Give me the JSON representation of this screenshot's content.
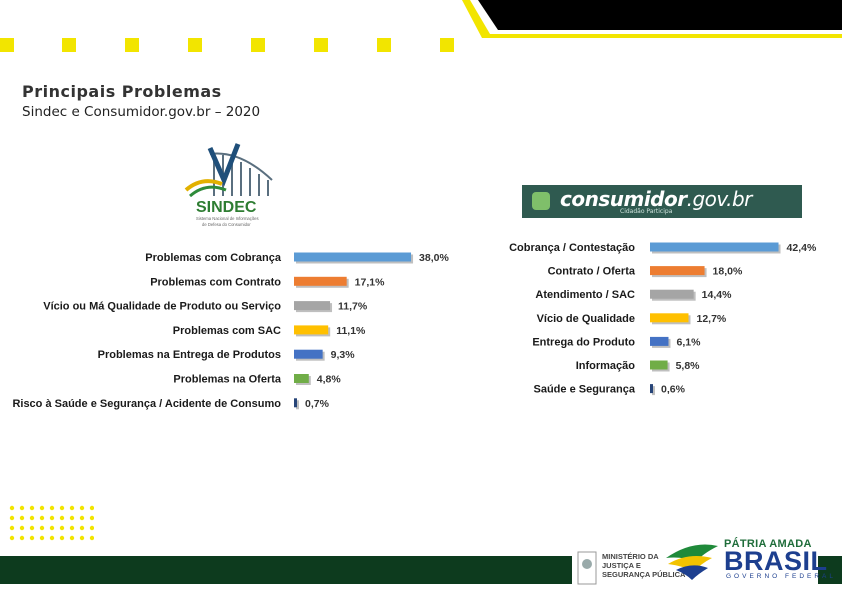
{
  "header": {
    "title": "Principais Problemas",
    "subtitle": "Sindec e Consumidor.gov.br – 2020"
  },
  "logos": {
    "sindec_name": "SINDEC",
    "sindec_caption_1": "Sistema Nacional de Informações",
    "sindec_caption_2": "de Defesa do Consumidor",
    "consumidor_brand_bold": "consumidor",
    "consumidor_brand_thin": ".gov.br",
    "consumidor_tagline": "Cidadão Participa",
    "ministry_line_1": "MINISTÉRIO DA",
    "ministry_line_2": "JUSTIÇA E",
    "ministry_line_3": "SEGURANÇA PÚBLICA",
    "gov_patria": "PÁTRIA AMADA",
    "gov_brasil": "BRASIL",
    "gov_federal": "GOVERNO FEDERAL"
  },
  "colors": {
    "accent_yellow": "#f2e500",
    "dark_green": "#0d3b1e",
    "brand_green": "#2f5a50"
  },
  "chart_data": [
    {
      "type": "bar",
      "orientation": "horizontal",
      "source": "SINDEC",
      "categories": [
        "Problemas com Cobrança",
        "Problemas com Contrato",
        "Vício ou Má Qualidade de Produto ou Serviço",
        "Problemas com SAC",
        "Problemas na Entrega de Produtos",
        "Problemas na Oferta",
        "Risco à Saúde e Segurança / Acidente de Consumo"
      ],
      "values": [
        38.0,
        17.1,
        11.7,
        11.1,
        9.3,
        4.8,
        0.7
      ],
      "value_labels": [
        "38,0%",
        "17,1%",
        "11,7%",
        "11,1%",
        "9,3%",
        "4,8%",
        "0,7%"
      ],
      "bar_colors": [
        "#5b9bd5",
        "#ed7d31",
        "#a5a5a5",
        "#ffc000",
        "#4472c4",
        "#70ad47",
        "#264478"
      ],
      "xlim": [
        0,
        45
      ],
      "grid": false,
      "legend": "none"
    },
    {
      "type": "bar",
      "orientation": "horizontal",
      "source": "consumidor.gov.br",
      "categories": [
        "Cobrança / Contestação",
        "Contrato / Oferta",
        "Atendimento / SAC",
        "Vício de Qualidade",
        "Entrega do Produto",
        "Informação",
        "Saúde e Segurança"
      ],
      "values": [
        42.4,
        18.0,
        14.4,
        12.7,
        6.1,
        5.8,
        0.6
      ],
      "value_labels": [
        "42,4%",
        "18,0%",
        "14,4%",
        "12,7%",
        "6,1%",
        "5,8%",
        "0,6%"
      ],
      "bar_colors": [
        "#5b9bd5",
        "#ed7d31",
        "#a5a5a5",
        "#ffc000",
        "#4472c4",
        "#70ad47",
        "#264478"
      ],
      "xlim": [
        0,
        45
      ],
      "grid": false,
      "legend": "none"
    }
  ]
}
